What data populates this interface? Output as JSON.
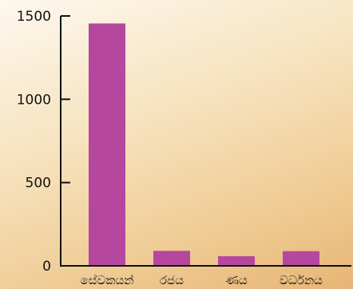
{
  "chart_data": {
    "type": "bar",
    "categories": [
      "සේවකයන්",
      "රජය",
      "ණය",
      "වර්ධනය"
    ],
    "values": [
      1455,
      90,
      58,
      88
    ],
    "ylim": [
      0,
      1500
    ],
    "yticks": [
      0,
      500,
      1000,
      1500
    ],
    "bar_color": "#b5479f",
    "axis_color": "#111111",
    "grid": false,
    "legend": "none"
  }
}
